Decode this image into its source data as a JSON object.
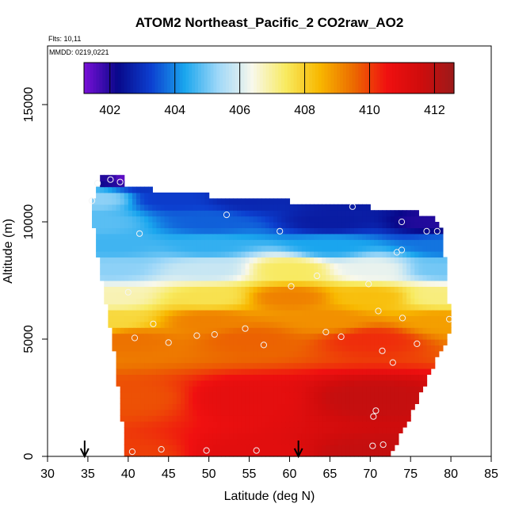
{
  "chart_data": {
    "type": "heatmap",
    "title": "ATOM2 Northeast_Pacific_2 CO2raw_AO2",
    "flights_label": "Flts: 10,11",
    "dates_label": "MMDD: 0219,0221",
    "xlabel": "Latitude (deg N)",
    "ylabel": "Altitude (m)",
    "xlim": [
      30,
      85
    ],
    "ylim": [
      0,
      17500
    ],
    "xticks": [
      30,
      35,
      40,
      45,
      50,
      55,
      60,
      65,
      70,
      75,
      80,
      85
    ],
    "yticks": [
      0,
      5000,
      10000,
      15000
    ],
    "colorbar": {
      "min": 401.2,
      "max": 412.6,
      "ticks": [
        402,
        404,
        406,
        408,
        410,
        412
      ],
      "colors": [
        "#7a10d8",
        "#08088a",
        "#0c40d0",
        "#1aa6ee",
        "#a0d8f8",
        "#f8f8ec",
        "#f8ea60",
        "#f8b800",
        "#ec6c00",
        "#f01010",
        "#d00c0c",
        "#9c1a1a"
      ]
    },
    "arrows": [
      34.6,
      61.1
    ],
    "field": {
      "row_height_m": 250,
      "col_width_deg": 0.5,
      "bands": [
        {
          "alt": 0,
          "lat": 40,
          "co2": 410.0
        },
        {
          "alt": 0,
          "lat": 55,
          "co2": 411.0
        },
        {
          "alt": 0,
          "lat": 70,
          "co2": 411.8
        },
        {
          "alt": 2500,
          "lat": 40,
          "co2": 409.8
        },
        {
          "alt": 2500,
          "lat": 55,
          "co2": 410.9
        },
        {
          "alt": 2500,
          "lat": 70,
          "co2": 411.8
        },
        {
          "alt": 5000,
          "lat": 40,
          "co2": 409.4
        },
        {
          "alt": 5000,
          "lat": 55,
          "co2": 409.6
        },
        {
          "alt": 5000,
          "lat": 70,
          "co2": 410.2
        },
        {
          "alt": 5800,
          "lat": 38,
          "co2": 407.8
        },
        {
          "alt": 5800,
          "lat": 50,
          "co2": 409.2
        },
        {
          "alt": 5800,
          "lat": 65,
          "co2": 409.0
        },
        {
          "alt": 5800,
          "lat": 79,
          "co2": 408.8
        },
        {
          "alt": 6800,
          "lat": 38,
          "co2": 406.8
        },
        {
          "alt": 6800,
          "lat": 50,
          "co2": 407.6
        },
        {
          "alt": 6800,
          "lat": 60,
          "co2": 409.2
        },
        {
          "alt": 6800,
          "lat": 70,
          "co2": 408.3
        },
        {
          "alt": 6800,
          "lat": 79,
          "co2": 407.2
        },
        {
          "alt": 8000,
          "lat": 38,
          "co2": 405.2
        },
        {
          "alt": 8000,
          "lat": 50,
          "co2": 405.8
        },
        {
          "alt": 8000,
          "lat": 60,
          "co2": 407.4
        },
        {
          "alt": 8000,
          "lat": 70,
          "co2": 406.2
        },
        {
          "alt": 8000,
          "lat": 79,
          "co2": 405.0
        },
        {
          "alt": 9000,
          "lat": 38,
          "co2": 404.6
        },
        {
          "alt": 9000,
          "lat": 50,
          "co2": 404.5
        },
        {
          "alt": 9000,
          "lat": 65,
          "co2": 404.3
        },
        {
          "alt": 9000,
          "lat": 79,
          "co2": 403.8
        },
        {
          "alt": 10000,
          "lat": 36,
          "co2": 404.8
        },
        {
          "alt": 10000,
          "lat": 50,
          "co2": 403.6
        },
        {
          "alt": 10000,
          "lat": 65,
          "co2": 402.6
        },
        {
          "alt": 10000,
          "lat": 78,
          "co2": 402.0
        },
        {
          "alt": 11000,
          "lat": 36,
          "co2": 405.2
        },
        {
          "alt": 11000,
          "lat": 45,
          "co2": 403.2
        },
        {
          "alt": 11000,
          "lat": 55,
          "co2": 402.8
        },
        {
          "alt": 11000,
          "lat": 67,
          "co2": 402.6
        },
        {
          "alt": 12000,
          "lat": 37,
          "co2": 402.0
        },
        {
          "alt": 12000,
          "lat": 40,
          "co2": 401.4
        }
      ],
      "extent": [
        {
          "alt": 0,
          "lat_min": 40.0,
          "lat_max": 72.0
        },
        {
          "alt": 1500,
          "lat_min": 39.5,
          "lat_max": 74.5
        },
        {
          "alt": 3000,
          "lat_min": 39.0,
          "lat_max": 76.5
        },
        {
          "alt": 4500,
          "lat_min": 38.5,
          "lat_max": 78.5
        },
        {
          "alt": 5600,
          "lat_min": 38.0,
          "lat_max": 80.0
        },
        {
          "alt": 6500,
          "lat_min": 37.5,
          "lat_max": 79.5
        },
        {
          "alt": 8500,
          "lat_min": 36.5,
          "lat_max": 79.0
        },
        {
          "alt": 9800,
          "lat_min": 36.0,
          "lat_max": 78.5
        },
        {
          "alt": 10300,
          "lat_min": 35.5,
          "lat_max": 77.5
        },
        {
          "alt": 10700,
          "lat_min": 35.5,
          "lat_max": 68.0
        },
        {
          "alt": 11000,
          "lat_min": 36.0,
          "lat_max": 53.5
        },
        {
          "alt": 11500,
          "lat_min": 36.5,
          "lat_max": 39.5
        },
        {
          "alt": 12000,
          "lat_min": 36.5,
          "lat_max": 39.5
        }
      ]
    },
    "samples": [
      {
        "lat": 36.2,
        "alt": 11650
      },
      {
        "lat": 37.8,
        "alt": 11800
      },
      {
        "lat": 39.0,
        "alt": 11700
      },
      {
        "lat": 35.5,
        "alt": 10900
      },
      {
        "lat": 52.2,
        "alt": 10300
      },
      {
        "lat": 67.8,
        "alt": 10650
      },
      {
        "lat": 41.4,
        "alt": 9500
      },
      {
        "lat": 58.8,
        "alt": 9600
      },
      {
        "lat": 73.9,
        "alt": 10000
      },
      {
        "lat": 77.0,
        "alt": 9600
      },
      {
        "lat": 78.3,
        "alt": 9600
      },
      {
        "lat": 73.3,
        "alt": 8700
      },
      {
        "lat": 73.9,
        "alt": 8800
      },
      {
        "lat": 63.4,
        "alt": 7700
      },
      {
        "lat": 60.2,
        "alt": 7250
      },
      {
        "lat": 69.8,
        "alt": 7350
      },
      {
        "lat": 40.0,
        "alt": 7000
      },
      {
        "lat": 71.0,
        "alt": 6200
      },
      {
        "lat": 74.0,
        "alt": 5900
      },
      {
        "lat": 79.8,
        "alt": 5850
      },
      {
        "lat": 43.1,
        "alt": 5650
      },
      {
        "lat": 54.5,
        "alt": 5450
      },
      {
        "lat": 64.5,
        "alt": 5300
      },
      {
        "lat": 66.4,
        "alt": 5100
      },
      {
        "lat": 40.8,
        "alt": 5050
      },
      {
        "lat": 48.5,
        "alt": 5150
      },
      {
        "lat": 50.7,
        "alt": 5200
      },
      {
        "lat": 45.0,
        "alt": 4850
      },
      {
        "lat": 56.8,
        "alt": 4750
      },
      {
        "lat": 75.8,
        "alt": 4800
      },
      {
        "lat": 71.5,
        "alt": 4500
      },
      {
        "lat": 72.8,
        "alt": 4000
      },
      {
        "lat": 70.7,
        "alt": 1950
      },
      {
        "lat": 70.4,
        "alt": 1700
      },
      {
        "lat": 40.5,
        "alt": 200
      },
      {
        "lat": 44.1,
        "alt": 300
      },
      {
        "lat": 49.7,
        "alt": 250
      },
      {
        "lat": 55.9,
        "alt": 250
      },
      {
        "lat": 70.3,
        "alt": 450
      },
      {
        "lat": 71.6,
        "alt": 500
      }
    ]
  }
}
